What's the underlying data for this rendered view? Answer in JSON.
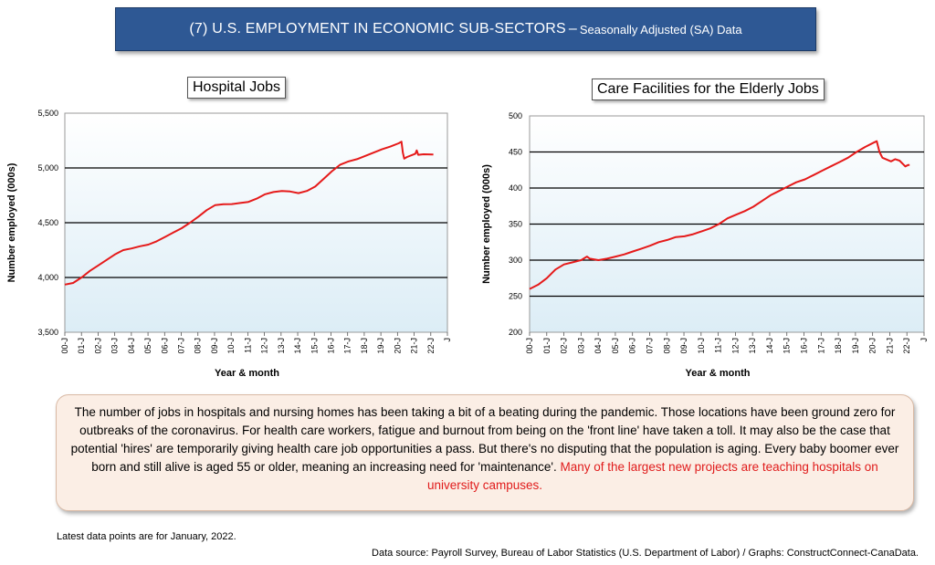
{
  "header": {
    "title": "(7) U.S. EMPLOYMENT IN ECONOMIC SUB-SECTORS",
    "separator": "–",
    "subtitle": "Seasonally Adjusted (SA) Data"
  },
  "colors": {
    "banner": "#2e5894",
    "line": "#e51a1a",
    "plot_top": "#ffffff",
    "plot_bottom": "#dcedf6",
    "note_bg": "#fbeee5",
    "highlight": "#e01b1b"
  },
  "chart_data": [
    {
      "type": "line",
      "title": "Hospital Jobs",
      "xlabel": "Year & month",
      "ylabel": "Number employed (000s)",
      "ylim": [
        3500,
        5500
      ],
      "yticks": [
        3500,
        4000,
        4500,
        5000,
        5500
      ],
      "ytick_labels": [
        "3,500",
        "4,000",
        "4,500",
        "5,000",
        "5,500"
      ],
      "grid": "horizontal",
      "xlim": [
        2000.0,
        2022.92
      ],
      "xticks": [
        "00-J",
        "01-J",
        "02-J",
        "03-J",
        "04-J",
        "05-J",
        "06-J",
        "07-J",
        "08-J",
        "09-J",
        "10-J",
        "11-J",
        "12-J",
        "13-J",
        "14-J",
        "15-J",
        "16-J",
        "17-J",
        "18-J",
        "19-J",
        "20-J",
        "21-J",
        "22-J",
        "J"
      ],
      "series": [
        {
          "x": [
            2000.0,
            2000.5,
            2001.0,
            2001.5,
            2002.0,
            2002.5,
            2003.0,
            2003.5,
            2004.0,
            2004.5,
            2005.0,
            2005.5,
            2006.0,
            2006.5,
            2007.0,
            2007.5,
            2008.0,
            2008.5,
            2009.0,
            2009.5,
            2010.0,
            2010.5,
            2011.0,
            2011.5,
            2012.0,
            2012.5,
            2013.0,
            2013.5,
            2014.0,
            2014.5,
            2015.0,
            2015.5,
            2016.0,
            2016.5,
            2017.0,
            2017.5,
            2018.0,
            2018.5,
            2019.0,
            2019.5,
            2020.0,
            2020.17,
            2020.25,
            2020.33,
            2020.5,
            2021.0,
            2021.08,
            2021.17,
            2021.5,
            2022.0,
            2022.08
          ],
          "y": [
            3935,
            3950,
            4000,
            4060,
            4110,
            4160,
            4210,
            4250,
            4265,
            4285,
            4300,
            4330,
            4370,
            4410,
            4450,
            4500,
            4555,
            4615,
            4660,
            4668,
            4670,
            4680,
            4690,
            4720,
            4760,
            4780,
            4790,
            4785,
            4770,
            4790,
            4830,
            4900,
            4970,
            5030,
            5060,
            5080,
            5110,
            5140,
            5170,
            5195,
            5225,
            5240,
            5140,
            5085,
            5100,
            5130,
            5160,
            5120,
            5125,
            5123,
            5123
          ]
        }
      ]
    },
    {
      "type": "line",
      "title": "Care Facilities for the Elderly Jobs",
      "xlabel": "Year & month",
      "ylabel": "Number employed (000s)",
      "ylim": [
        200,
        500
      ],
      "yticks": [
        200,
        250,
        300,
        350,
        400,
        450,
        500
      ],
      "ytick_labels": [
        "200",
        "250",
        "300",
        "350",
        "400",
        "450",
        "500"
      ],
      "grid": "horizontal",
      "xlim": [
        2000.0,
        2022.92
      ],
      "xticks": [
        "00-J",
        "01-J",
        "02-J",
        "03-J",
        "04-J",
        "05-J",
        "06-J",
        "07-J",
        "08-J",
        "09-J",
        "10-J",
        "11-J",
        "12-J",
        "13-J",
        "14-J",
        "15-J",
        "16-J",
        "17-J",
        "18-J",
        "19-J",
        "20-J",
        "21-J",
        "22-J",
        "J"
      ],
      "series": [
        {
          "x": [
            2000.0,
            2000.5,
            2001.0,
            2001.5,
            2002.0,
            2002.5,
            2003.0,
            2003.33,
            2003.5,
            2004.0,
            2004.5,
            2005.0,
            2005.5,
            2006.0,
            2006.5,
            2007.0,
            2007.5,
            2008.0,
            2008.5,
            2009.0,
            2009.5,
            2010.0,
            2010.5,
            2011.0,
            2011.5,
            2012.0,
            2012.5,
            2013.0,
            2013.5,
            2014.0,
            2014.5,
            2015.0,
            2015.5,
            2016.0,
            2016.5,
            2017.0,
            2017.5,
            2018.0,
            2018.5,
            2019.0,
            2019.5,
            2020.0,
            2020.17,
            2020.33,
            2020.5,
            2021.0,
            2021.25,
            2021.5,
            2021.83,
            2022.0,
            2022.08
          ],
          "y": [
            260,
            266,
            275,
            287,
            294,
            297,
            300,
            305,
            302,
            300,
            302,
            305,
            308,
            312,
            316,
            320,
            325,
            328,
            332,
            333,
            336,
            340,
            344,
            350,
            358,
            363,
            368,
            374,
            382,
            390,
            396,
            402,
            408,
            412,
            418,
            424,
            430,
            436,
            442,
            450,
            457,
            463,
            465,
            450,
            442,
            437,
            440,
            438,
            430,
            432,
            432
          ]
        }
      ]
    }
  ],
  "note": {
    "text": "The number of jobs in hospitals and nursing homes has been taking a bit of a beating during the pandemic. Those locations have been ground zero for outbreaks of the coronavirus. For health care workers, fatigue and burnout from being on the 'front line' have taken a toll. It may also be the case that potential 'hires' are temporarily giving health care job opportunities a pass. But there's no disputing that the population is aging. Every baby boomer ever born and still alive is aged 55 or older, meaning an increasing need for 'maintenance'. ",
    "highlight": "Many of the largest new projects are teaching hospitals on university campuses."
  },
  "footer": {
    "latest": "Latest data points are for January, 2022.",
    "source": "Data source: Payroll Survey, Bureau of Labor Statistics (U.S. Department of Labor) / Graphs: ConstructConnect-CanaData."
  }
}
